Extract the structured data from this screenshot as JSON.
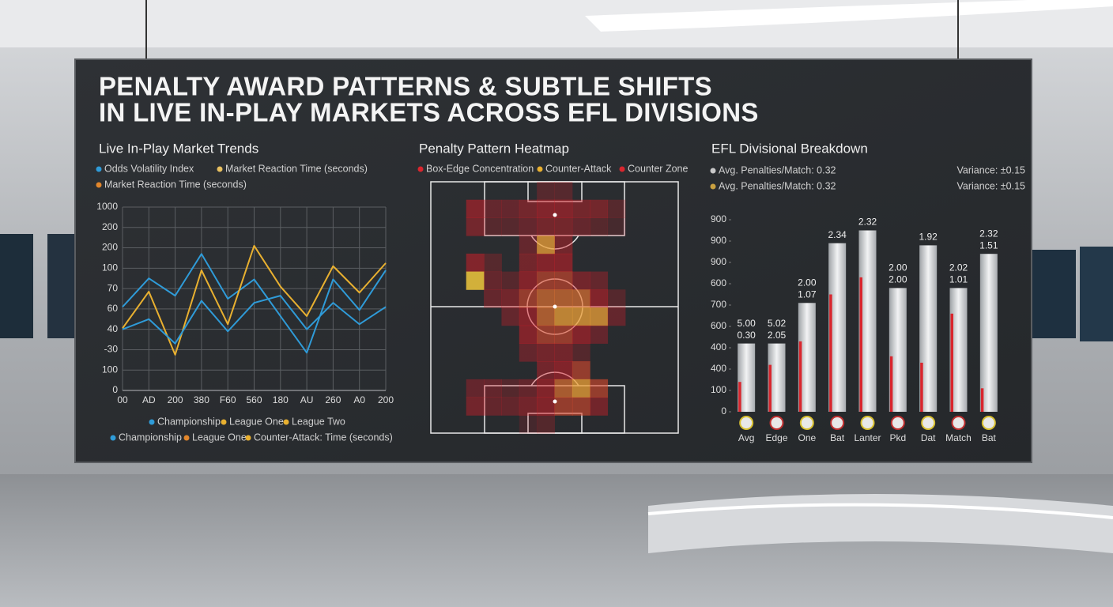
{
  "title": [
    "PENALTY AWARD PATTERNS & SUBTLE SHIFTS",
    "IN LIVE IN-PLAY MARKETS ACROSS EFL DIVISIONS"
  ],
  "chart_data": [
    {
      "type": "line",
      "title": "Live In-Play Market Trends",
      "legend_top": [
        {
          "name": "Odds Volatility Index",
          "color": "#2f9bd8"
        },
        {
          "name": "Market Reaction Time (seconds)",
          "color": "#e8c060"
        },
        {
          "name": "Market Reaction Time (seconds)",
          "color": "#e2862b"
        }
      ],
      "legend_bottom": [
        {
          "name": "Championship",
          "color": "#2f9bd8"
        },
        {
          "name": "League One",
          "color": "#e8b030"
        },
        {
          "name": "League Two",
          "color": "#e8b030"
        },
        {
          "name": "Championship",
          "color": "#2f9bd8"
        },
        {
          "name": "League One",
          "color": "#e2862b"
        },
        {
          "name": "Counter-Attack: Time (seconds)",
          "color": "#e8b030"
        }
      ],
      "categories": [
        "00",
        "AD",
        "200",
        "380",
        "F60",
        "560",
        "180",
        "AU",
        "260",
        "A0",
        "200"
      ],
      "series": [
        {
          "color": "#2f9bd8",
          "values": [
            4.1,
            5.5,
            4.65,
            6.7,
            4.5,
            5.45,
            3.65,
            1.85,
            5.45,
            3.95,
            5.9
          ]
        },
        {
          "color": "#e8b030",
          "values": [
            3.05,
            4.85,
            1.75,
            5.9,
            3.25,
            7.1,
            5.1,
            3.65,
            6.1,
            4.8,
            6.25
          ]
        },
        {
          "color": "#2f9bd8",
          "values": [
            3.0,
            3.5,
            2.3,
            4.4,
            2.9,
            4.3,
            4.65,
            3.0,
            4.3,
            3.25,
            4.1
          ]
        }
      ],
      "ylim": [
        0,
        9
      ],
      "yticks": [
        0,
        {
          "value": 1,
          "label": "100"
        },
        {
          "value": 2,
          "label": "-30"
        },
        {
          "value": 3,
          "label": "40"
        },
        {
          "value": 4,
          "label": "60"
        },
        {
          "value": 5,
          "label": "70"
        },
        {
          "value": 6,
          "label": "100"
        },
        {
          "value": 7,
          "label": "200"
        },
        {
          "value": 8,
          "label": "200"
        },
        {
          "value": 9,
          "label": "1000"
        }
      ],
      "grid": true
    },
    {
      "type": "heatmap",
      "title": "Penalty Pattern Heatmap",
      "legend": [
        {
          "name": "Box-Edge Concentration",
          "color": "#d9262e"
        },
        {
          "name": "Counter-Attack",
          "color": "#e8b030"
        },
        {
          "name": "Counter Zone",
          "color": "#d9262e"
        }
      ],
      "cells": [
        [
          0,
          0,
          0,
          0,
          0,
          0,
          0.3,
          0.3,
          0,
          0,
          0,
          0,
          0,
          0
        ],
        [
          0,
          0,
          0.6,
          0.4,
          0.4,
          0.5,
          0.6,
          0.6,
          0.5,
          0.5,
          0.3,
          0,
          0,
          0
        ],
        [
          0,
          0,
          0.5,
          0.3,
          0.3,
          0.4,
          0.5,
          0.5,
          0.4,
          0.3,
          0.2,
          0,
          0,
          0
        ],
        [
          0,
          0,
          0,
          0,
          0,
          0.4,
          0.9,
          0.5,
          0,
          0,
          0,
          0,
          0,
          0
        ],
        [
          0,
          0,
          0.6,
          0.3,
          0,
          0.5,
          0.6,
          0.6,
          0,
          0,
          0,
          0,
          0,
          0
        ],
        [
          0,
          0,
          1,
          0.4,
          0.3,
          0.6,
          0.7,
          0.7,
          0.5,
          0.4,
          0,
          0,
          0,
          0
        ],
        [
          0,
          0,
          0,
          0.4,
          0.5,
          0.7,
          0.8,
          0.8,
          0.8,
          0.6,
          0.3,
          0,
          0,
          0
        ],
        [
          0,
          0,
          0,
          0,
          0.4,
          0.6,
          0.8,
          0.9,
          0.9,
          0.9,
          0.4,
          0,
          0,
          0
        ],
        [
          0,
          0,
          0,
          0,
          0,
          0.6,
          0.7,
          0.7,
          0.6,
          0.4,
          0,
          0,
          0,
          0
        ],
        [
          0,
          0,
          0,
          0,
          0,
          0.4,
          0.5,
          0.5,
          0.3,
          0,
          0,
          0,
          0,
          0
        ],
        [
          0,
          0,
          0,
          0,
          0,
          0,
          0.5,
          0.6,
          0.7,
          0,
          0,
          0,
          0,
          0
        ],
        [
          0,
          0,
          0.4,
          0.4,
          0.3,
          0.4,
          0.6,
          0.8,
          0.9,
          0.7,
          0,
          0,
          0,
          0
        ],
        [
          0,
          0,
          0.5,
          0.4,
          0.4,
          0.5,
          0.6,
          0.7,
          0.7,
          0.5,
          0,
          0,
          0,
          0
        ],
        [
          0,
          0,
          0,
          0,
          0,
          0.2,
          0.3,
          0,
          0,
          0,
          0,
          0,
          0,
          0
        ]
      ]
    },
    {
      "type": "bar",
      "title": "EFL Divisional Breakdown",
      "legend": [
        {
          "name": "Avg. Penalties/Match: 0.32",
          "color": "#c8c8c8",
          "note": "Variance: ±0.15"
        },
        {
          "name": "Avg. Penalties/Match: 0.32",
          "color": "#c9a040",
          "note": "Variance: ±0.15"
        }
      ],
      "categories": [
        "Avg",
        "Edge",
        "One",
        "Bat",
        "Lanter",
        "Pkd",
        "Dat",
        "Match",
        "Bat"
      ],
      "series": [
        {
          "color": "#d4d6d8",
          "values": [
            3.2,
            3.2,
            5.1,
            7.9,
            8.5,
            5.8,
            7.8,
            5.8,
            7.4
          ]
        },
        {
          "color": "#d9262e",
          "values": [
            1.4,
            2.2,
            3.3,
            5.5,
            6.3,
            2.6,
            2.3,
            4.6,
            1.1
          ]
        }
      ],
      "bar_annotations": {
        "top": [
          "5.00",
          "5.02",
          "2.00",
          "2.34",
          "2.32",
          "2.00",
          "1.92",
          "2.02",
          "2.32"
        ],
        "bottom": [
          "0.30",
          "2.05",
          "1.07",
          null,
          null,
          "2.00",
          null,
          "1.01",
          "1.51"
        ]
      },
      "ylim": [
        0,
        9
      ],
      "yticks": [
        0,
        {
          "value": 1,
          "label": "100"
        },
        {
          "value": 2,
          "label": "400"
        },
        {
          "value": 3,
          "label": "400"
        },
        {
          "value": 4,
          "label": "600"
        },
        {
          "value": 5,
          "label": "700"
        },
        {
          "value": 6,
          "label": "600"
        },
        {
          "value": 7,
          "label": "900"
        },
        {
          "value": 8,
          "label": "900"
        },
        {
          "value": 9,
          "label": "900"
        }
      ]
    }
  ]
}
